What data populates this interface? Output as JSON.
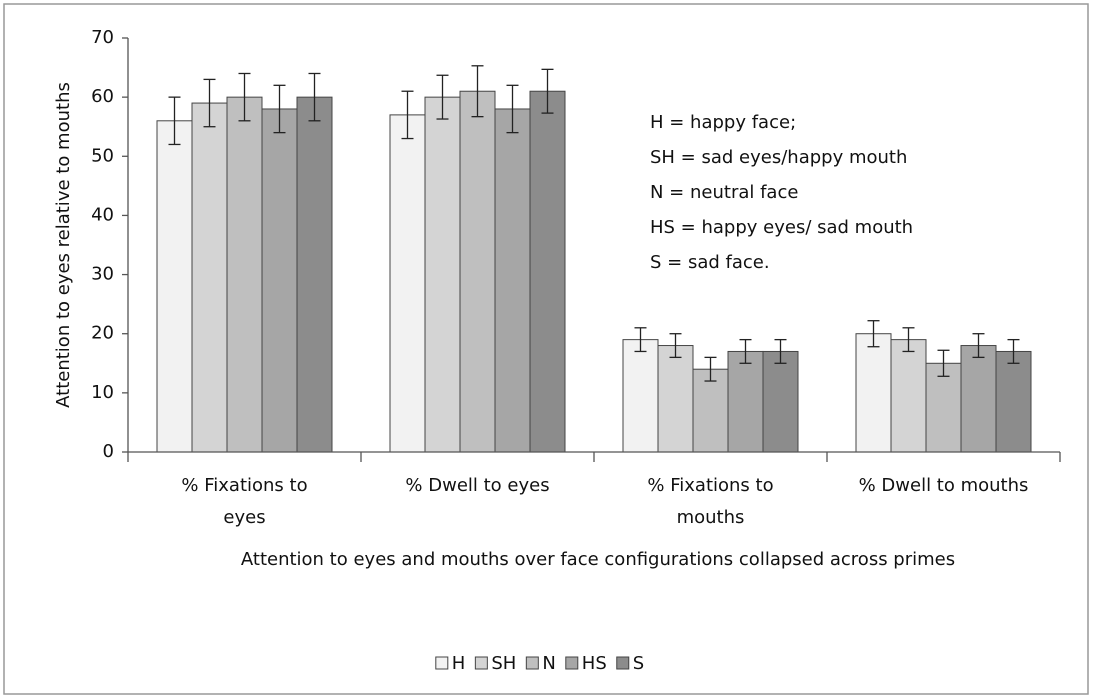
{
  "chart_data": {
    "type": "bar",
    "ylabel": "Attention to eyes relative to mouths",
    "xlabel": "Attention to eyes and mouths over face configurations collapsed across primes",
    "annotation": [
      "H = happy face;",
      "SH = sad eyes/happy mouth",
      "N = neutral face",
      "HS = happy eyes/ sad mouth",
      "S = sad face."
    ],
    "categories": [
      "% Fixations to eyes",
      "% Dwell to eyes",
      "% Fixations to mouths",
      "% Dwell to mouths"
    ],
    "series": [
      {
        "name": "H",
        "color": "#f2f2f2",
        "values": [
          56,
          57,
          19,
          20
        ],
        "errors": [
          4,
          4,
          2,
          2.2
        ]
      },
      {
        "name": "SH",
        "color": "#d4d4d4",
        "values": [
          59,
          60,
          18,
          19
        ],
        "errors": [
          4,
          3.7,
          2,
          2
        ]
      },
      {
        "name": "N",
        "color": "#bfbfbf",
        "values": [
          60,
          61,
          14,
          15
        ],
        "errors": [
          4,
          4.3,
          2,
          2.2
        ]
      },
      {
        "name": "HS",
        "color": "#a6a6a6",
        "values": [
          58,
          58,
          17,
          18
        ],
        "errors": [
          4,
          4,
          2,
          2
        ]
      },
      {
        "name": "S",
        "color": "#8c8c8c",
        "values": [
          60,
          61,
          17,
          17
        ],
        "errors": [
          4,
          3.7,
          2,
          2
        ]
      }
    ],
    "ylim": [
      0,
      70
    ],
    "yticks": [
      0,
      10,
      20,
      30,
      40,
      50,
      60,
      70
    ],
    "grid": false,
    "legend": "bottom"
  }
}
